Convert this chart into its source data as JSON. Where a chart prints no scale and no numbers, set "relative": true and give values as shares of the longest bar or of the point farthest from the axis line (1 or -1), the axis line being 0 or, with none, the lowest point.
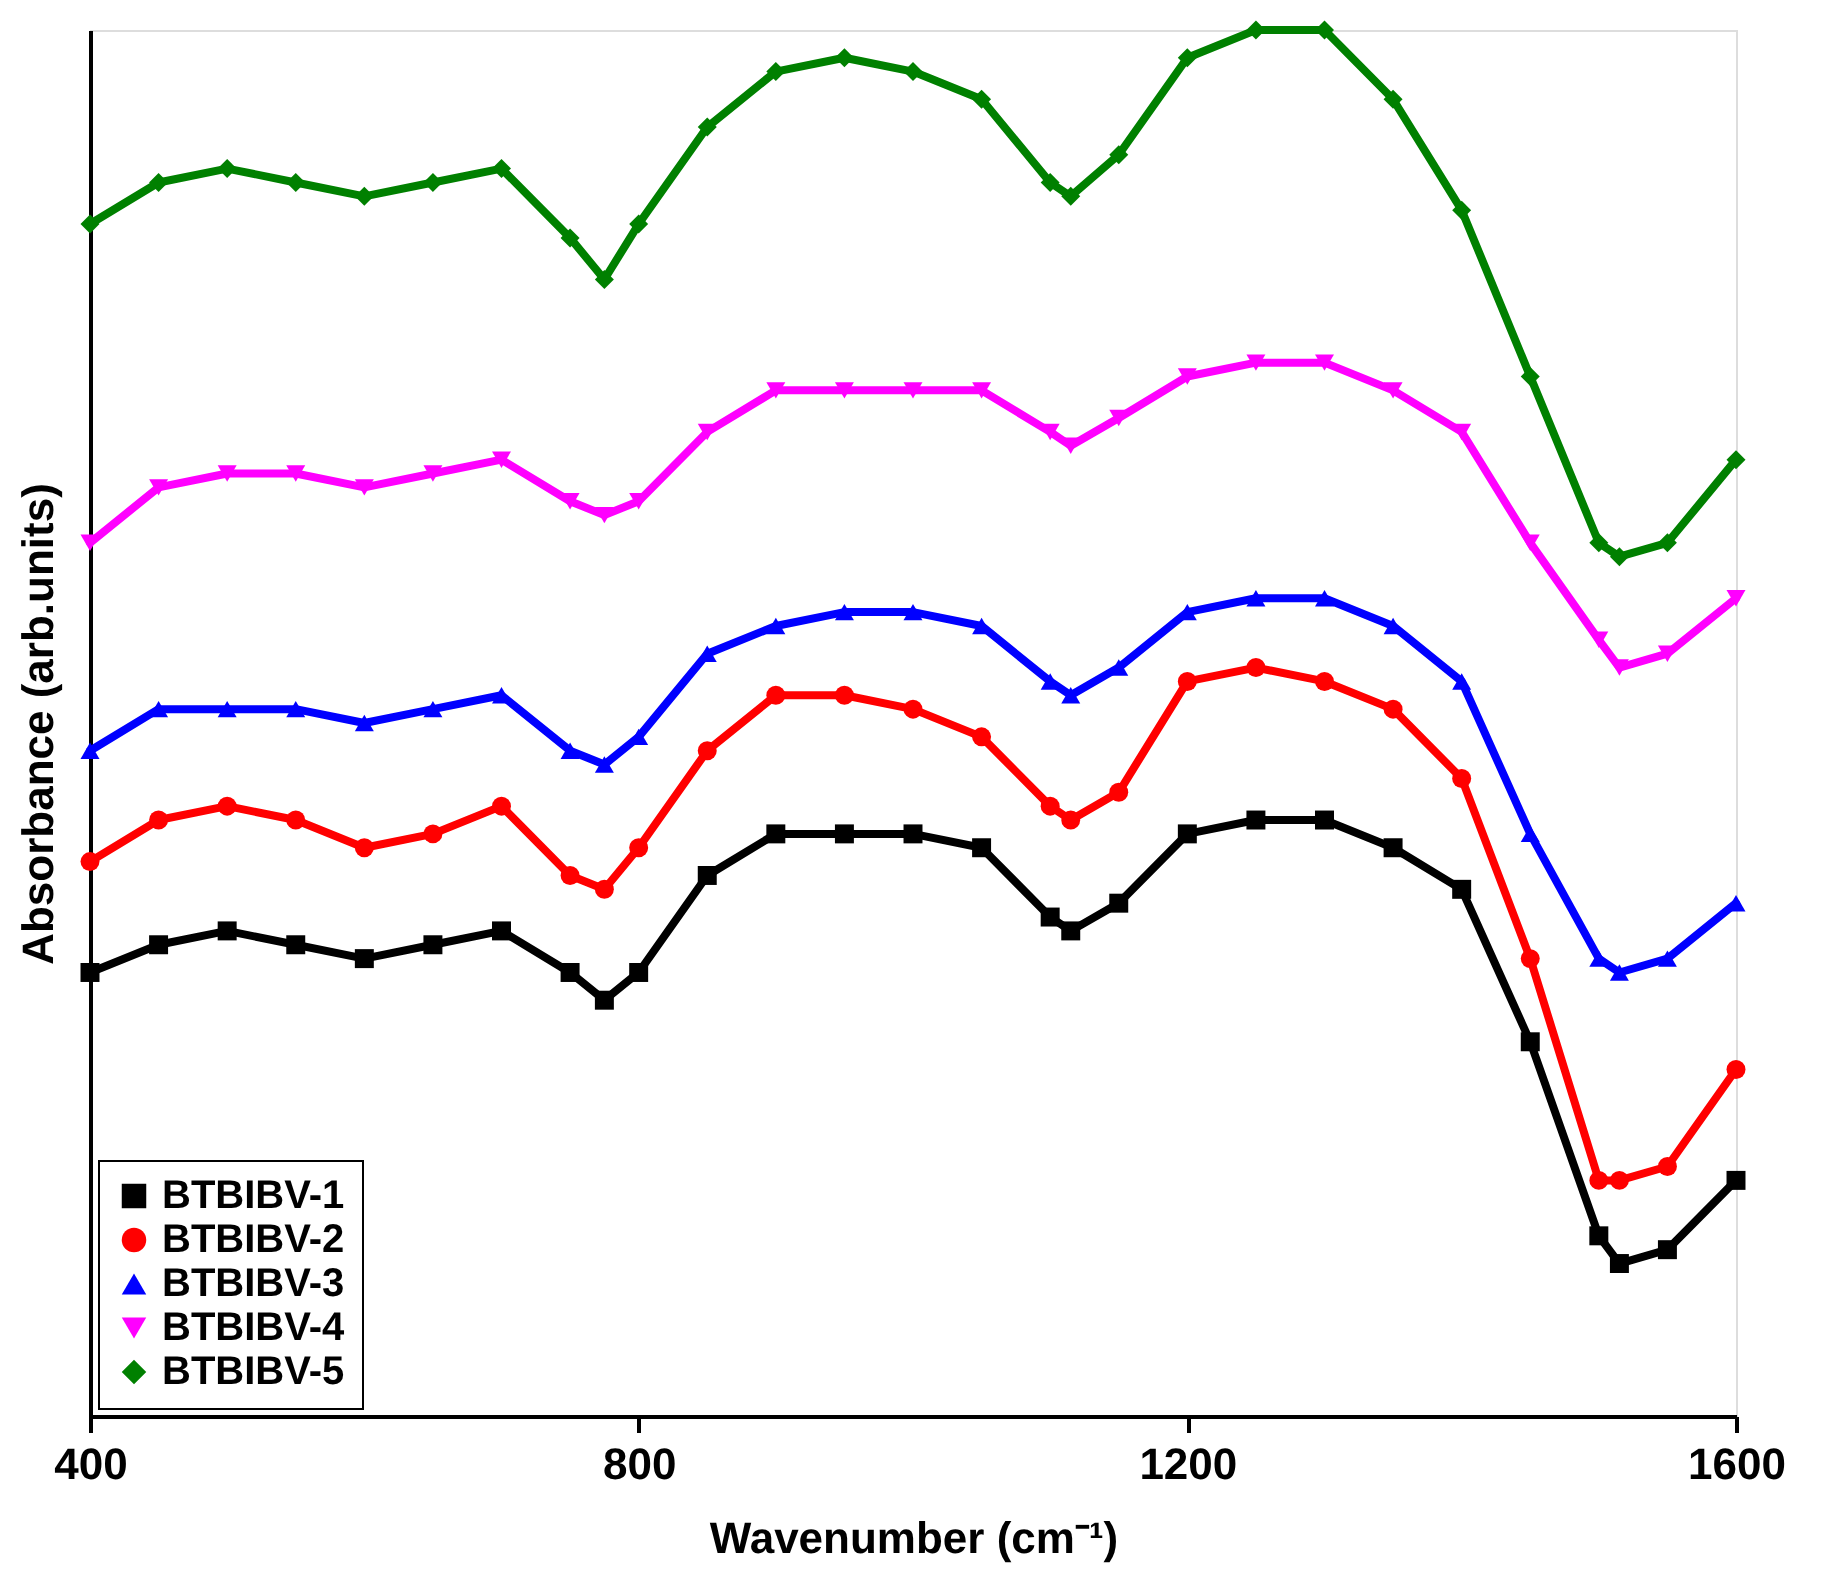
{
  "chart_data": {
    "type": "line",
    "relative": true,
    "xlabel": "Wavenumber (cm⁻¹)",
    "ylabel": "Absorbance (arb.units)",
    "xlim": [
      400,
      1600
    ],
    "xticks": [
      400,
      800,
      1200,
      1600
    ],
    "tick_labels": "x",
    "grid": false,
    "legend": "bottom left",
    "line_style": "solid",
    "x": [
      400,
      450,
      500,
      550,
      600,
      650,
      700,
      750,
      775,
      800,
      850,
      900,
      950,
      1000,
      1050,
      1100,
      1115,
      1150,
      1200,
      1250,
      1300,
      1350,
      1400,
      1450,
      1500,
      1515,
      1550,
      1600
    ],
    "series": [
      {
        "name": "BTBIBV-1",
        "color": "#000000",
        "marker": "square",
        "values": [
          0.32,
          0.34,
          0.35,
          0.34,
          0.33,
          0.34,
          0.35,
          0.32,
          0.3,
          0.32,
          0.39,
          0.42,
          0.42,
          0.42,
          0.41,
          0.36,
          0.35,
          0.37,
          0.42,
          0.43,
          0.43,
          0.41,
          0.38,
          0.27,
          0.13,
          0.11,
          0.12,
          0.17
        ]
      },
      {
        "name": "BTBIBV-2",
        "color": "#ff0000",
        "marker": "circle",
        "values": [
          0.4,
          0.43,
          0.44,
          0.43,
          0.41,
          0.42,
          0.44,
          0.39,
          0.38,
          0.41,
          0.48,
          0.52,
          0.52,
          0.51,
          0.49,
          0.44,
          0.43,
          0.45,
          0.53,
          0.54,
          0.53,
          0.51,
          0.46,
          0.33,
          0.17,
          0.17,
          0.18,
          0.25
        ]
      },
      {
        "name": "BTBIBV-3",
        "color": "#0000ff",
        "marker": "triangle",
        "values": [
          0.48,
          0.51,
          0.51,
          0.51,
          0.5,
          0.51,
          0.52,
          0.48,
          0.47,
          0.49,
          0.55,
          0.57,
          0.58,
          0.58,
          0.57,
          0.53,
          0.52,
          0.54,
          0.58,
          0.59,
          0.59,
          0.57,
          0.53,
          0.42,
          0.33,
          0.32,
          0.33,
          0.37
        ]
      },
      {
        "name": "BTBIBV-4",
        "color": "#ff00ff",
        "marker": "triangle-down",
        "values": [
          0.63,
          0.67,
          0.68,
          0.68,
          0.67,
          0.68,
          0.69,
          0.66,
          0.65,
          0.66,
          0.71,
          0.74,
          0.74,
          0.74,
          0.74,
          0.71,
          0.7,
          0.72,
          0.75,
          0.76,
          0.76,
          0.74,
          0.71,
          0.63,
          0.56,
          0.54,
          0.55,
          0.59
        ]
      },
      {
        "name": "BTBIBV-5",
        "color": "#008000",
        "marker": "diamond",
        "values": [
          0.86,
          0.89,
          0.9,
          0.89,
          0.88,
          0.89,
          0.9,
          0.85,
          0.82,
          0.86,
          0.93,
          0.97,
          0.98,
          0.97,
          0.95,
          0.89,
          0.88,
          0.91,
          0.98,
          1.0,
          1.0,
          0.95,
          0.87,
          0.75,
          0.63,
          0.62,
          0.63,
          0.69
        ]
      }
    ]
  }
}
